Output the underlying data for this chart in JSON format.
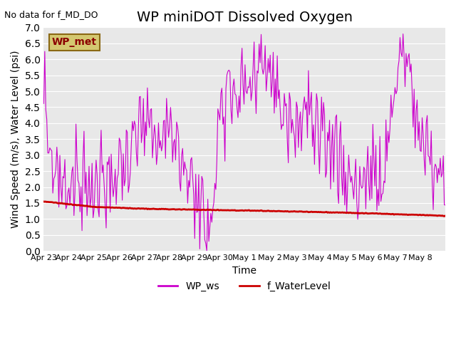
{
  "title": "WP miniDOT Dissolved Oxygen",
  "top_left_text": "No data for f_MD_DO",
  "ylabel": "Wind Speed (m/s), Water Level (psi)",
  "xlabel": "Time",
  "ylim": [
    0.0,
    7.0
  ],
  "yticks": [
    0.0,
    0.5,
    1.0,
    1.5,
    2.0,
    2.5,
    3.0,
    3.5,
    4.0,
    4.5,
    5.0,
    5.5,
    6.0,
    6.5,
    7.0
  ],
  "xtick_labels": [
    "Apr 23",
    "Apr 24",
    "Apr 25",
    "Apr 26",
    "Apr 27",
    "Apr 28",
    "Apr 29",
    "Apr 30",
    "May 1",
    "May 2",
    "May 3",
    "May 4",
    "May 5",
    "May 6",
    "May 7",
    "May 8"
  ],
  "legend_box_label": "WP_met",
  "legend_box_color": "#d4c870",
  "legend_box_text_color": "#8b0000",
  "line_ws_color": "#cc00cc",
  "line_wl_color": "#cc0000",
  "line_ws_label": "WP_ws",
  "line_wl_label": "f_WaterLevel",
  "bg_color": "#e8e8e8",
  "title_fontsize": 14,
  "axis_fontsize": 10
}
